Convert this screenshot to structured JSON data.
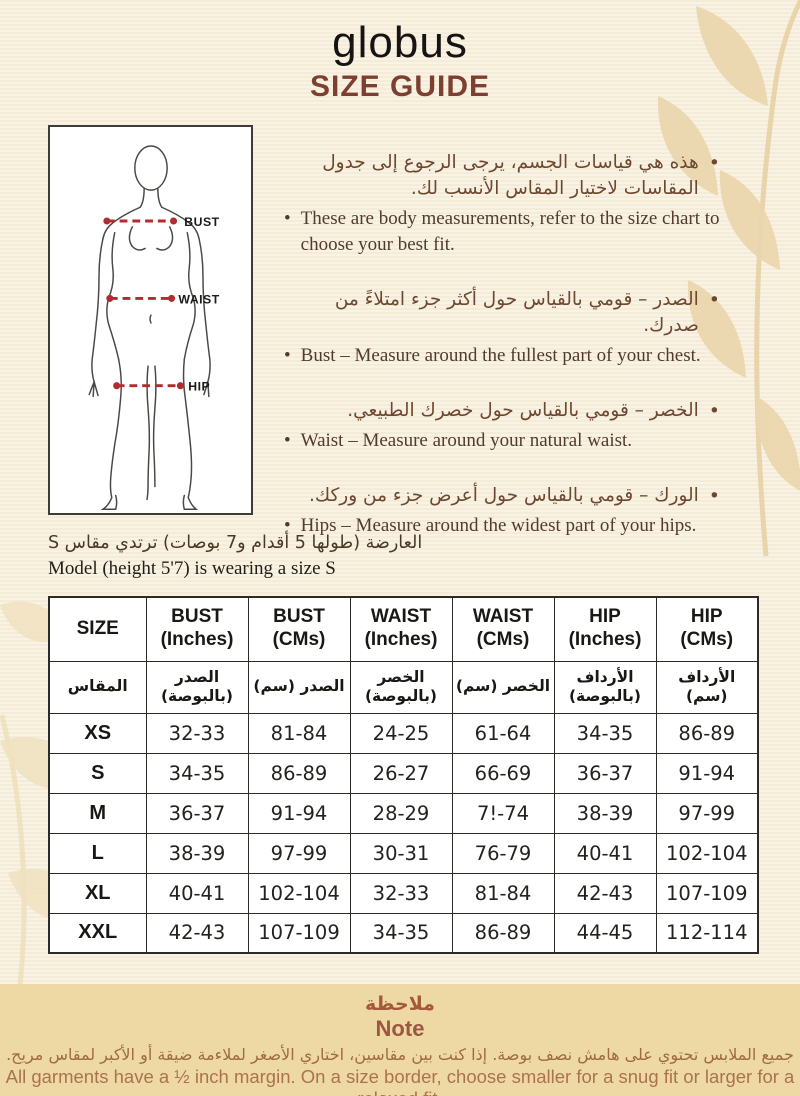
{
  "header": {
    "brand": "globus",
    "title": "SIZE GUIDE"
  },
  "figure": {
    "bust_label": "BUST",
    "waist_label": "WAIST",
    "hip_label": "HIP"
  },
  "instructions": [
    {
      "ar": "هذه هي قياسات الجسم، يرجى الرجوع إلى جدول المقاسات لاختيار المقاس الأنسب لك.",
      "en": "These are body measurements, refer to the size chart to choose your best fit."
    },
    {
      "ar": "الصدر – قومي بالقياس حول أكثر جزء امتلاءً من صدرك.",
      "en": "Bust – Measure around the fullest part of your chest."
    },
    {
      "ar": "الخصر – قومي بالقياس حول خصرك الطبيعي.",
      "en": "Waist – Measure around your natural waist."
    },
    {
      "ar": "الورك – قومي بالقياس حول أعرض جزء من وركك.",
      "en": "Hips – Measure around the widest part of your hips."
    }
  ],
  "model_note": {
    "ar": "العارضة (طولها 5 أقدام و7 بوصات) ترتدي مقاس S",
    "en": "Model (height 5'7) is wearing a size S"
  },
  "table": {
    "headers_en": [
      [
        "SIZE"
      ],
      [
        "BUST",
        "(Inches)"
      ],
      [
        "BUST",
        "(CMs)"
      ],
      [
        "WAIST",
        "(Inches)"
      ],
      [
        "WAIST",
        "(CMs)"
      ],
      [
        "HIP",
        "(Inches)"
      ],
      [
        "HIP",
        "(CMs)"
      ]
    ],
    "headers_ar": [
      [
        "المقاس"
      ],
      [
        "الصدر",
        "(بالبوصة)"
      ],
      [
        "الصدر (سم)"
      ],
      [
        "الخصر",
        "(بالبوصة)"
      ],
      [
        "الخصر (سم)"
      ],
      [
        "الأرداف",
        "(بالبوصة)"
      ],
      [
        "الأرداف (سم)"
      ]
    ],
    "rows": [
      [
        "XS",
        "32-33",
        "81-84",
        "24-25",
        "61-64",
        "34-35",
        "86-89"
      ],
      [
        "S",
        "34-35",
        "86-89",
        "26-27",
        "66-69",
        "36-37",
        "91-94"
      ],
      [
        "M",
        "36-37",
        "91-94",
        "28-29",
        "7!-74",
        "38-39",
        "97-99"
      ],
      [
        "L",
        "38-39",
        "97-99",
        "30-31",
        "76-79",
        "40-41",
        "102-104"
      ],
      [
        "XL",
        "40-41",
        "102-104",
        "32-33",
        "81-84",
        "42-43",
        "107-109"
      ],
      [
        "XXL",
        "42-43",
        "107-109",
        "34-35",
        "86-89",
        "44-45",
        "112-114"
      ]
    ]
  },
  "note": {
    "title_ar": "ملاحظة",
    "title_en": "Note",
    "body_ar": "جميع الملابس تحتوي على هامش نصف بوصة. إذا كنت بين مقاسين، اختاري الأصغر لملاءمة ضيقة أو الأكبر لمقاس مريح.",
    "body_en": "All garments have a ½ inch margin. On a size border, choose smaller for a snug fit or larger for a relaxed fit."
  },
  "colors": {
    "page_bg": "#f7efdc",
    "title_brown": "#7d4030",
    "bullet_ar_brown": "#6d4830",
    "bullet_en_brown": "#503b2c",
    "note_band_bg": "#eed9a5",
    "note_title_brown": "#9c5740",
    "note_body_brown": "#aa734e",
    "measure_line_red": "#b12b31",
    "table_border": "#2e2b26",
    "leaf_beige": "#ebd7ae"
  }
}
